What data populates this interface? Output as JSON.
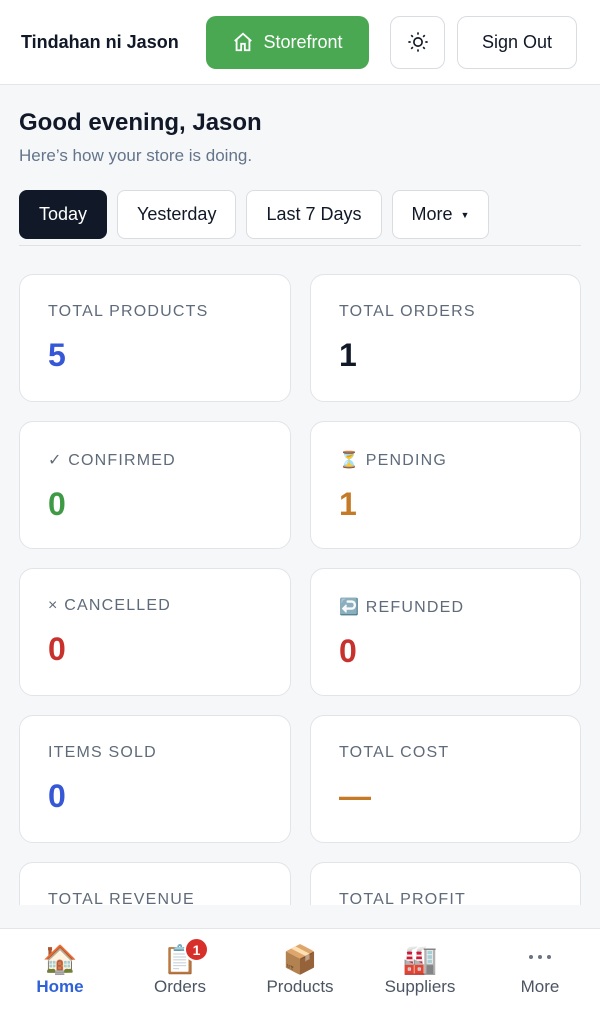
{
  "header": {
    "store_name": "Tindahan ni Jason",
    "storefront_button": "Storefront",
    "sign_out_button": "Sign Out"
  },
  "greeting": {
    "title": "Good evening, Jason",
    "subtitle": "Here’s how your store is doing."
  },
  "filters": [
    {
      "label": "Today",
      "active": true
    },
    {
      "label": "Yesterday",
      "active": false
    },
    {
      "label": "Last 7 Days",
      "active": false
    },
    {
      "label": "More",
      "active": false
    }
  ],
  "cards": [
    {
      "label": "TOTAL PRODUCTS",
      "value": "5",
      "color": "#3657d6"
    },
    {
      "label": "TOTAL ORDERS",
      "value": "1",
      "color": "#111827"
    },
    {
      "label": "✓ CONFIRMED",
      "value": "0",
      "color": "#3f9a46"
    },
    {
      "label": "⏳ PENDING",
      "value": "1",
      "color": "#c47a27"
    },
    {
      "label": "× CANCELLED",
      "value": "0",
      "color": "#c8322d"
    },
    {
      "label": "↩️ REFUNDED",
      "value": "0",
      "color": "#c8322d"
    },
    {
      "label": "ITEMS SOLD",
      "value": "0",
      "color": "#3657d6"
    },
    {
      "label": "TOTAL COST",
      "value": "—",
      "color": "#c47a27"
    },
    {
      "label": "TOTAL REVENUE"
    },
    {
      "label": "TOTAL PROFIT"
    }
  ],
  "nav": [
    {
      "icon": "🏠",
      "label": "Home",
      "active": true
    },
    {
      "icon": "📋",
      "label": "Orders",
      "active": false,
      "badge": "1"
    },
    {
      "icon": "📦",
      "label": "Products",
      "active": false
    },
    {
      "icon": "🏭",
      "label": "Suppliers",
      "active": false
    },
    {
      "label": "More",
      "active": false
    }
  ]
}
